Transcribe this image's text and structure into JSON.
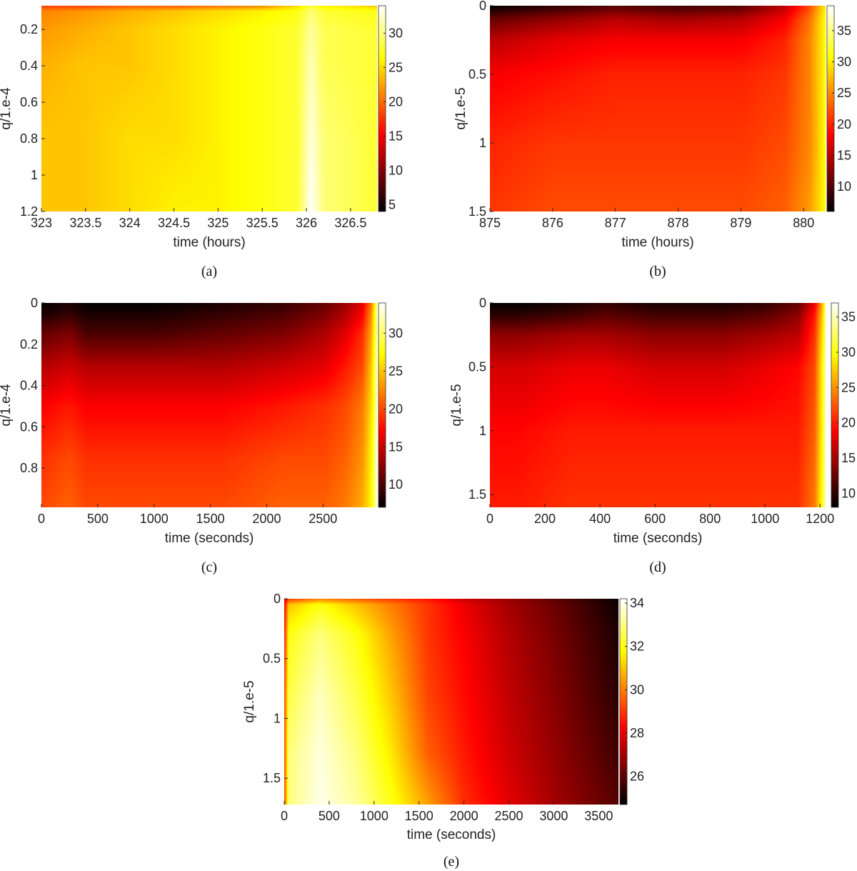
{
  "chart_data": [
    {
      "id": "a",
      "type": "heatmap",
      "caption": "(a)",
      "xlabel": "time (hours)",
      "ylabel": "q/1.e-4",
      "xlim": [
        323,
        326.8
      ],
      "ylim": [
        0.07,
        1.2
      ],
      "xticks": [
        323,
        323.5,
        324,
        324.5,
        325,
        325.5,
        326,
        326.5
      ],
      "xtick_labels": [
        "323",
        "323.5",
        "324",
        "324.5",
        "325",
        "325.5",
        "326",
        "326.5"
      ],
      "yticks": [
        0.2,
        0.4,
        0.6,
        0.8,
        1,
        1.2
      ],
      "ytick_labels": [
        "0.2",
        "0.4",
        "0.6",
        "0.8",
        "1",
        "1.2"
      ],
      "colorbar": {
        "min": 4,
        "max": 34,
        "ticks": [
          5,
          10,
          15,
          20,
          25,
          30
        ],
        "tick_labels": [
          "5",
          "10",
          "15",
          "20",
          "25",
          "30"
        ]
      },
      "colormap": "hot",
      "x_samples": [
        323,
        323.5,
        324,
        324.5,
        325,
        325.5,
        325.9,
        326.05,
        326.2,
        326.8
      ],
      "y_samples": [
        0.07,
        0.1,
        0.2,
        0.4,
        0.8,
        1.2
      ],
      "values": [
        [
          18,
          18,
          19,
          19,
          20,
          21,
          25,
          28,
          26,
          24
        ],
        [
          21,
          22,
          23,
          24,
          25,
          26,
          27,
          30,
          28,
          27
        ],
        [
          22,
          23,
          24,
          25,
          26,
          27,
          28,
          31,
          29,
          28
        ],
        [
          23,
          24,
          24,
          25,
          26,
          27,
          28,
          32,
          29,
          28
        ],
        [
          24,
          24,
          25,
          25,
          26,
          27,
          28,
          33,
          30,
          28
        ],
        [
          24,
          24,
          25,
          26,
          26,
          27,
          28,
          34,
          30,
          28
        ]
      ]
    },
    {
      "id": "b",
      "type": "heatmap",
      "caption": "(b)",
      "xlabel": "time (hours)",
      "ylabel": "q/1.e-5",
      "xlim": [
        875,
        880.35
      ],
      "ylim": [
        0,
        1.5
      ],
      "xticks": [
        875,
        876,
        877,
        878,
        879,
        880
      ],
      "xtick_labels": [
        "875",
        "876",
        "877",
        "878",
        "879",
        "880"
      ],
      "yticks": [
        0,
        0.5,
        1,
        1.5
      ],
      "ytick_labels": [
        "0",
        "0.5",
        "1",
        "1.5"
      ],
      "colorbar": {
        "min": 6,
        "max": 39,
        "ticks": [
          10,
          15,
          20,
          25,
          30,
          35
        ],
        "tick_labels": [
          "10",
          "15",
          "20",
          "25",
          "30",
          "35"
        ]
      },
      "colormap": "hot",
      "x_samples": [
        875,
        876,
        877,
        878,
        879,
        879.7,
        880.1,
        880.35
      ],
      "y_samples": [
        0,
        0.1,
        0.25,
        0.5,
        1,
        1.5
      ],
      "values": [
        [
          6,
          8,
          10,
          9,
          10,
          15,
          22,
          30
        ],
        [
          11,
          13,
          15,
          14,
          15,
          18,
          24,
          31
        ],
        [
          15,
          17,
          18,
          18,
          18,
          20,
          25,
          31
        ],
        [
          18,
          19,
          20,
          20,
          20,
          21,
          25,
          31
        ],
        [
          20,
          21,
          21,
          21,
          21,
          22,
          25,
          31
        ],
        [
          21,
          22,
          22,
          22,
          22,
          23,
          26,
          31
        ]
      ]
    },
    {
      "id": "c",
      "type": "heatmap",
      "caption": "(c)",
      "xlabel": "time (seconds)",
      "ylabel": "q/1.e-4",
      "xlim": [
        0,
        2980
      ],
      "ylim": [
        0,
        0.99
      ],
      "xticks": [
        0,
        500,
        1000,
        1500,
        2000,
        2500
      ],
      "xtick_labels": [
        "0",
        "500",
        "1000",
        "1500",
        "2000",
        "2500"
      ],
      "yticks": [
        0,
        0.2,
        0.4,
        0.6,
        0.8
      ],
      "ytick_labels": [
        "0",
        "0.2",
        "0.4",
        "0.6",
        "0.8"
      ],
      "colorbar": {
        "min": 7,
        "max": 34,
        "ticks": [
          10,
          15,
          20,
          25,
          30
        ],
        "tick_labels": [
          "10",
          "15",
          "20",
          "25",
          "30"
        ]
      },
      "colormap": "hot",
      "x_samples": [
        0,
        250,
        400,
        1000,
        1600,
        2150,
        2520,
        2700,
        2850,
        2930,
        2980
      ],
      "y_samples": [
        0,
        0.05,
        0.15,
        0.3,
        0.5,
        0.75,
        0.99
      ],
      "values": [
        [
          7,
          8,
          7,
          7,
          8,
          9,
          11,
          13,
          16,
          22,
          30
        ],
        [
          8,
          9,
          8,
          8,
          9,
          10,
          12,
          14,
          17,
          23,
          31
        ],
        [
          11,
          12,
          10,
          10,
          11,
          12,
          14,
          16,
          19,
          24,
          31
        ],
        [
          14,
          15,
          14,
          14,
          14,
          15,
          16,
          18,
          20,
          25,
          32
        ],
        [
          17,
          18,
          17,
          17,
          17,
          18,
          19,
          20,
          22,
          26,
          32
        ],
        [
          19,
          20,
          19,
          19,
          19,
          20,
          20,
          21,
          23,
          27,
          33
        ],
        [
          20,
          21,
          20,
          20,
          20,
          21,
          21,
          22,
          24,
          27,
          33
        ]
      ]
    },
    {
      "id": "d",
      "type": "heatmap",
      "caption": "(d)",
      "xlabel": "time (seconds)",
      "ylabel": "q/1.e-5",
      "xlim": [
        0,
        1220
      ],
      "ylim": [
        0,
        1.6
      ],
      "xticks": [
        0,
        200,
        400,
        600,
        800,
        1000,
        1200
      ],
      "xtick_labels": [
        "0",
        "200",
        "400",
        "600",
        "800",
        "1000",
        "1200"
      ],
      "yticks": [
        0,
        0.5,
        1,
        1.5
      ],
      "ytick_labels": [
        "0",
        "0.5",
        "1",
        "1.5"
      ],
      "colorbar": {
        "min": 8,
        "max": 37,
        "ticks": [
          10,
          15,
          20,
          25,
          30,
          35
        ],
        "tick_labels": [
          "10",
          "15",
          "20",
          "25",
          "30",
          "35"
        ]
      },
      "colormap": "hot",
      "x_samples": [
        0,
        100,
        300,
        420,
        600,
        850,
        1000,
        1120,
        1180,
        1210,
        1220
      ],
      "y_samples": [
        0,
        0.1,
        0.25,
        0.5,
        1,
        1.6
      ],
      "values": [
        [
          8,
          8,
          9,
          10,
          9,
          9,
          10,
          12,
          18,
          27,
          33
        ],
        [
          10,
          10,
          11,
          12,
          11,
          11,
          12,
          14,
          20,
          28,
          34
        ],
        [
          14,
          14,
          15,
          15,
          14,
          14,
          15,
          16,
          21,
          29,
          34
        ],
        [
          17,
          17,
          18,
          18,
          17,
          17,
          18,
          19,
          22,
          30,
          35
        ],
        [
          19,
          19,
          20,
          20,
          20,
          20,
          20,
          20,
          23,
          30,
          35
        ],
        [
          20,
          20,
          21,
          21,
          21,
          21,
          21,
          21,
          24,
          31,
          35
        ]
      ]
    },
    {
      "id": "e",
      "type": "heatmap",
      "caption": "(e)",
      "xlabel": "time (seconds)",
      "ylabel": "q/1.e-5",
      "xlim": [
        0,
        3720
      ],
      "ylim": [
        0,
        1.72
      ],
      "xticks": [
        0,
        500,
        1000,
        1500,
        2000,
        2500,
        3000,
        3500
      ],
      "xtick_labels": [
        "0",
        "500",
        "1000",
        "1500",
        "2000",
        "2500",
        "3000",
        "3500"
      ],
      "yticks": [
        0,
        0.5,
        1,
        1.5
      ],
      "ytick_labels": [
        "0",
        "0.5",
        "1",
        "1.5"
      ],
      "colorbar": {
        "min": 24.7,
        "max": 34.2,
        "ticks": [
          26,
          28,
          30,
          32,
          34
        ],
        "tick_labels": [
          "26",
          "28",
          "30",
          "32",
          "34"
        ]
      },
      "colormap": "hot",
      "x_samples": [
        0,
        50,
        400,
        800,
        1200,
        1600,
        2000,
        2500,
        3000,
        3720
      ],
      "y_samples": [
        0,
        0.05,
        0.3,
        0.8,
        1.3,
        1.72
      ],
      "values": [
        [
          27.5,
          29,
          30,
          29.5,
          29,
          28.5,
          27.5,
          26.8,
          26,
          24.8
        ],
        [
          28,
          31,
          32,
          31,
          30,
          29,
          28,
          27,
          26.2,
          24.9
        ],
        [
          28.5,
          32,
          33,
          32,
          30.5,
          29,
          28.2,
          27.2,
          26.4,
          25.1
        ],
        [
          29,
          32.5,
          33.6,
          32.5,
          31,
          29.2,
          28.4,
          27.4,
          26.6,
          25.3
        ],
        [
          29,
          33,
          33.9,
          33,
          31.5,
          29.6,
          28.6,
          27.6,
          26.8,
          25.6
        ],
        [
          29,
          33,
          34,
          33.3,
          32,
          30.5,
          28.9,
          27.9,
          27,
          25.9
        ]
      ]
    }
  ]
}
